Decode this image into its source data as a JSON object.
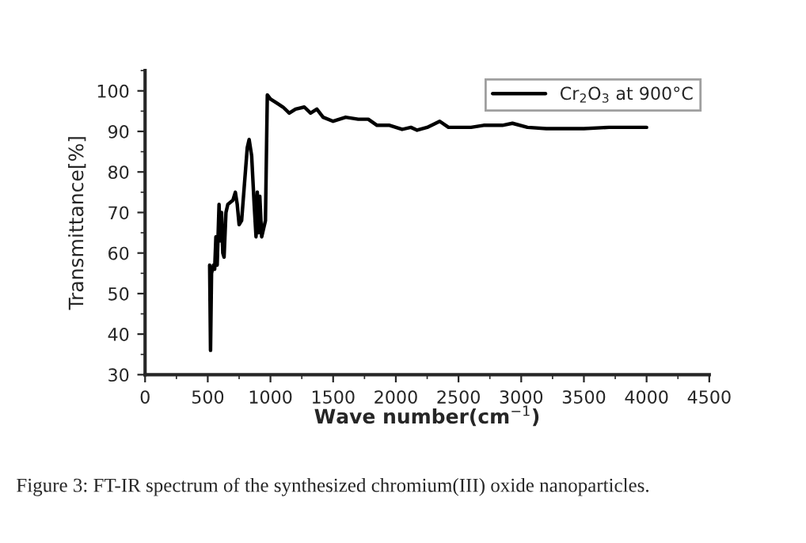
{
  "chart_data": {
    "type": "line",
    "xlabel": "Wave number(cm$^{−1}$)",
    "ylabel": "Transmittance[%]",
    "annotations": [
      "Figure 3: FT-IR spectrum of the synthesized chromium(III) oxide nanoparticles."
    ],
    "xlim": [
      0,
      4500
    ],
    "xticks": [
      0,
      500,
      1000,
      1500,
      2000,
      2500,
      3000,
      3500,
      4000,
      4500
    ],
    "ylim": [
      30,
      105
    ],
    "yticks": [
      30,
      40,
      50,
      60,
      70,
      80,
      90,
      100
    ],
    "grid": false,
    "legend": "top right",
    "line_style": "solid",
    "marker": "none",
    "series": [
      {
        "name": "Cr$_{2}$O$_{3}$ at 900°C",
        "color": "#000000",
        "x": [
          515,
          522,
          530,
          545,
          555,
          565,
          575,
          590,
          600,
          610,
          620,
          630,
          645,
          660,
          700,
          720,
          735,
          750,
          770,
          790,
          815,
          830,
          850,
          870,
          885,
          895,
          905,
          915,
          930,
          960,
          975,
          1000,
          1050,
          1100,
          1150,
          1200,
          1270,
          1320,
          1370,
          1420,
          1500,
          1600,
          1700,
          1780,
          1850,
          1950,
          2050,
          2120,
          2170,
          2250,
          2350,
          2420,
          2600,
          2700,
          2850,
          2930,
          3050,
          3200,
          3500,
          3700,
          4000
        ],
        "values": [
          57,
          36,
          55,
          57,
          56,
          64,
          57,
          72,
          63,
          70,
          60,
          59,
          70,
          72,
          73,
          75,
          72,
          67,
          68,
          76,
          86,
          88,
          84,
          72,
          64,
          75,
          65,
          74,
          64,
          68,
          99,
          98,
          97,
          96,
          94.5,
          95.5,
          96,
          94.5,
          95.5,
          93.5,
          92.5,
          93.5,
          93,
          93,
          91.5,
          91.5,
          90.5,
          91,
          90.3,
          91,
          92.5,
          91,
          91,
          91.5,
          91.5,
          92,
          91,
          90.7,
          90.7,
          91,
          91
        ]
      }
    ]
  }
}
